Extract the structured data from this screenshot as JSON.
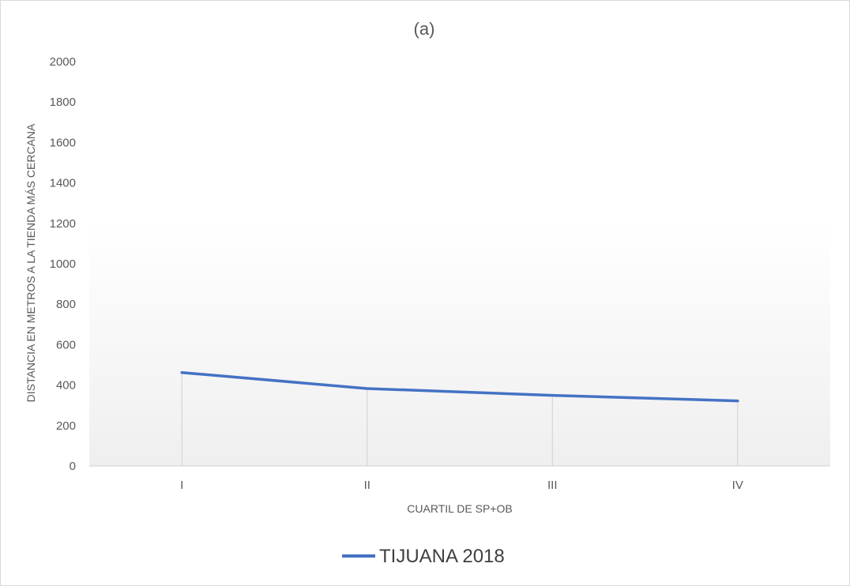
{
  "chart_data": {
    "type": "line",
    "title": "(a)",
    "xlabel": "CUARTIL DE SP+OB",
    "ylabel": "DISTANCIA EN METROS A LA TIENDA MÁS CERCANA",
    "categories": [
      "I",
      "II",
      "III",
      "IV"
    ],
    "series": [
      {
        "name": "TIJUANA 2018",
        "values": [
          462,
          383,
          349,
          322
        ],
        "color": "#4472c4"
      }
    ],
    "ylim": [
      0,
      2000
    ],
    "yticks": [
      "0",
      "200",
      "400",
      "600",
      "800",
      "1000",
      "1200",
      "1400",
      "1600",
      "1800",
      "2000"
    ],
    "grid": false,
    "drop_lines": true,
    "legend": "bottom"
  }
}
